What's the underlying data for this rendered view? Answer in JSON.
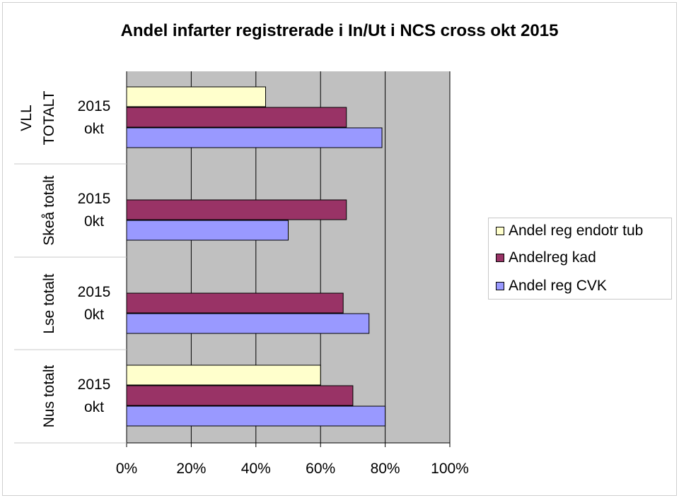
{
  "chart_data": {
    "type": "bar",
    "orientation": "horizontal",
    "title": "Andel infarter registrerade i In/Ut i NCS cross okt 2015",
    "groups": [
      "VLL TOTALT",
      "Skeå totalt",
      "Lse totalt",
      "Nus totalt"
    ],
    "group_label_lines": [
      [
        "VLL",
        "TOTALT"
      ],
      [
        "Skeå totalt"
      ],
      [
        "Lse totalt"
      ],
      [
        "Nus totalt"
      ]
    ],
    "sub_labels": [
      [
        "2015",
        "okt"
      ],
      [
        "2015",
        "0kt"
      ],
      [
        "2015",
        "0kt"
      ],
      [
        "2015",
        "okt"
      ]
    ],
    "series": [
      {
        "name": "Andel reg endotr tub",
        "color": "#ffffcc",
        "values": [
          43,
          null,
          null,
          60
        ]
      },
      {
        "name": "Andelreg kad",
        "color": "#993366",
        "values": [
          68,
          68,
          67,
          70
        ]
      },
      {
        "name": "Andel reg CVK",
        "color": "#9999ff",
        "values": [
          79,
          50,
          75,
          80
        ]
      }
    ],
    "xlim": [
      0,
      100
    ],
    "xticks": [
      "0%",
      "20%",
      "40%",
      "60%",
      "80%",
      "100%"
    ],
    "xtick_values": [
      0,
      20,
      40,
      60,
      80,
      100
    ],
    "grid": true,
    "plot_background": "#c0c0c0",
    "legend_position": "right"
  }
}
